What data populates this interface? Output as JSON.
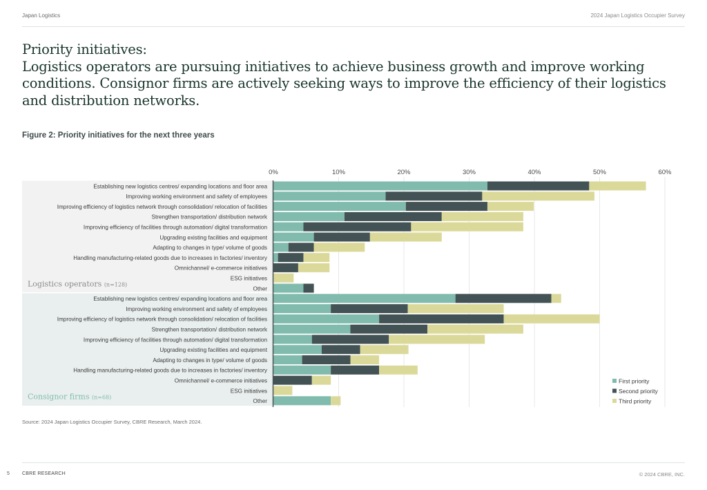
{
  "header": {
    "left": "Japan Logistics",
    "right": "2024 Japan Logistics Occupier Survey"
  },
  "title": {
    "line1": "Priority initiatives:",
    "body": "Logistics operators are pursuing initiatives to achieve business growth and improve working conditions. Consignor firms are actively seeking ways to improve the efficiency of their logistics and distribution networks."
  },
  "figure_title": "Figure 2: Priority initiatives for the next three years",
  "source": "Source: 2024 Japan Logistics Occupier Survey, CBRE Research, March 2024.",
  "footer": {
    "page": "5",
    "brand": "CBRE RESEARCH",
    "copyright": "© 2024 CBRE, INC."
  },
  "colors": {
    "first": "#80bbad",
    "second": "#435254",
    "third": "#dbd99a",
    "title": "#17332b",
    "group1_bg": "#f2f2f2",
    "group2_bg": "#e9efee",
    "group1_label": "#8a8a8a",
    "group2_label": "#80bbad"
  },
  "chart_data": {
    "type": "bar",
    "orientation": "horizontal",
    "stacked": true,
    "title": "Figure 2: Priority initiatives for the next three years",
    "xlabel": "",
    "ylabel": "",
    "xlim": [
      0,
      60
    ],
    "xticks": [
      "0%",
      "10%",
      "20%",
      "30%",
      "40%",
      "50%",
      "60%"
    ],
    "grid": true,
    "legend_position": "bottom-right",
    "series_names": [
      "First priority",
      "Second priority",
      "Third priority"
    ],
    "groups": [
      {
        "name": "Logistics operators",
        "n_label": "(n=128)",
        "categories": [
          "Establishing new logistics centres/ expanding locations and floor area",
          "Improving working environment and safety of employees",
          "Improving efficiency of logistics network through consolidation/ relocation of facilities",
          "Strengthen transportation/ distribution network",
          "Improving efficiency of facilities through automation/ digital transformation",
          "Upgrading existing facilities and equipment",
          "Adapting to changes in type/ volume of goods",
          "Handling manufacturing-related goods due to increases in factories/  inventory",
          "Omnichannel/ e-commerce initiatives",
          "ESG initiatives",
          "Other"
        ],
        "series": [
          {
            "name": "First priority",
            "values": [
              32.8,
              17.2,
              20.3,
              10.9,
              4.6,
              6.2,
              2.3,
              0.7,
              0.0,
              0.0,
              4.6
            ]
          },
          {
            "name": "Second priority",
            "values": [
              15.6,
              14.8,
              12.5,
              14.9,
              16.5,
              8.6,
              3.9,
              3.9,
              3.8,
              0.0,
              1.6
            ]
          },
          {
            "name": "Third priority",
            "values": [
              8.7,
              17.2,
              7.1,
              12.5,
              17.2,
              11.0,
              7.8,
              4.0,
              4.8,
              3.1,
              0.0
            ]
          }
        ]
      },
      {
        "name": "Consignor firms",
        "n_label": "(n=68)",
        "categories": [
          "Establishing new logistics centres/ expanding locations and floor area",
          "Improving working environment and safety of employees",
          "Improving efficiency of logistics network through consolidation/ relocation of facilities",
          "Strengthen transportation/ distribution network",
          "Improving efficiency of facilities through automation/ digital transformation",
          "Upgrading existing facilities and equipment",
          "Adapting to changes in type/ volume of goods",
          "Handling manufacturing-related goods due to increases in factories/  inventory",
          "Omnichannel/ e-commerce initiatives",
          "ESG initiatives",
          "Other"
        ],
        "series": [
          {
            "name": "First priority",
            "values": [
              27.9,
              8.8,
              16.2,
              11.8,
              5.9,
              7.4,
              4.4,
              8.8,
              0.0,
              0.0,
              8.8
            ]
          },
          {
            "name": "Second priority",
            "values": [
              14.7,
              11.8,
              19.1,
              11.8,
              11.8,
              5.9,
              7.4,
              7.4,
              5.9,
              0.0,
              0.0
            ]
          },
          {
            "name": "Third priority",
            "values": [
              1.5,
              14.7,
              14.7,
              14.7,
              14.7,
              7.4,
              4.4,
              5.9,
              2.9,
              2.9,
              1.5
            ]
          }
        ]
      }
    ]
  }
}
